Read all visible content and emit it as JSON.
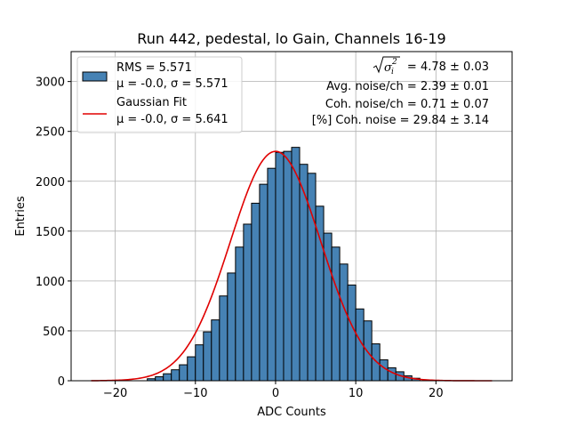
{
  "chart_data": {
    "type": "bar",
    "title": "Run 442, pedestal, lo Gain, Channels 16-19",
    "xlabel": "ADC Counts",
    "ylabel": "Entries",
    "xlim": [
      -25.5,
      29.5
    ],
    "ylim": [
      0,
      3300
    ],
    "x_ticks": [
      -20,
      -10,
      0,
      10,
      20
    ],
    "y_ticks": [
      0,
      500,
      1000,
      1500,
      2000,
      2500,
      3000
    ],
    "grid": true,
    "bin_width": 1,
    "bin_left_edges": [
      -16,
      -15,
      -14,
      -13,
      -12,
      -11,
      -10,
      -9,
      -8,
      -7,
      -6,
      -5,
      -4,
      -3,
      -2,
      -1,
      0,
      1,
      2,
      3,
      4,
      5,
      6,
      7,
      8,
      9,
      10,
      11,
      12,
      13,
      14,
      15,
      16,
      17
    ],
    "values": [
      20,
      40,
      70,
      110,
      160,
      240,
      360,
      490,
      610,
      850,
      1080,
      1340,
      1570,
      1780,
      1970,
      2130,
      2290,
      2300,
      2340,
      2170,
      2080,
      1750,
      1480,
      1340,
      1170,
      960,
      720,
      600,
      370,
      210,
      130,
      90,
      50,
      25
    ],
    "bar_color": "#4682b4",
    "fit_color": "#e00000",
    "fit": {
      "mu": 0.0,
      "sigma": 5.641,
      "amplitude": 2300,
      "x_range": [
        -23,
        27
      ]
    },
    "legend": {
      "position": "upper-left",
      "entries": [
        {
          "type": "patch",
          "lines": [
            "RMS = 5.571",
            "μ = -0.0, σ = 5.571"
          ]
        },
        {
          "type": "line",
          "lines": [
            "Gaussian Fit",
            "μ = -0.0, σ = 5.641"
          ]
        }
      ]
    },
    "annotations": {
      "sigma_line_value": "= 4.78 ± 0.03",
      "lines": [
        "Avg. noise/ch = 2.39 ± 0.01",
        "Coh. noise/ch = 0.71 ± 0.07",
        "[%] Coh. noise = 29.84 ± 3.14"
      ]
    }
  }
}
